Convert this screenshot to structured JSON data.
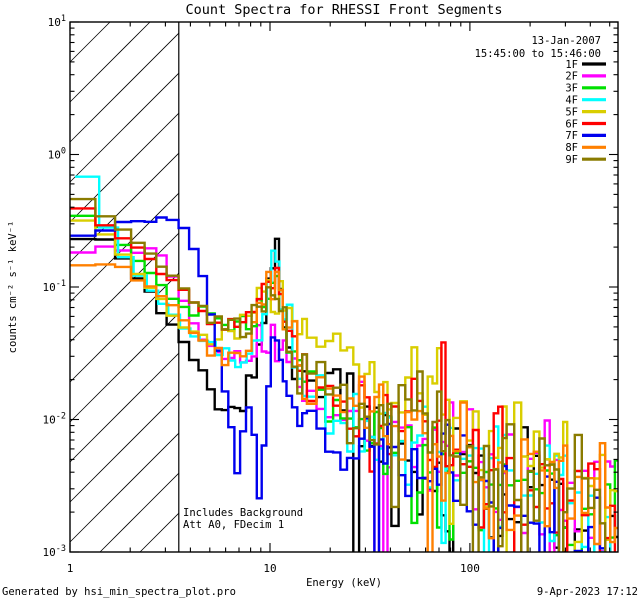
{
  "window": {
    "title": "Count Spectra for RHESSI Front Segments"
  },
  "header": {
    "date": "13-Jan-2007",
    "time_range": "15:45:00 to 15:46:00"
  },
  "annotation": {
    "line1": "Includes Background",
    "line2": "Att A0, FDecim 1"
  },
  "footer": {
    "generated_by": "Generated by hsi_min_spectra_plot.pro",
    "datestamp": "9-Apr-2023 17:12"
  },
  "chart_data": {
    "type": "line",
    "line_style": "histogram-steps",
    "title": "Count Spectra for RHESSI Front Segments",
    "xlabel": "Energy (keV)",
    "ylabel": "counts cm⁻² s⁻¹ keV⁻¹",
    "xscale": "log",
    "yscale": "log",
    "xlim": [
      1,
      550
    ],
    "ylim": [
      0.001,
      10
    ],
    "x_major_ticks": [
      1,
      10,
      100
    ],
    "x_tick_labels": [
      "1",
      "10",
      "100"
    ],
    "y_major_ticks": [
      10,
      1,
      0.1,
      0.01,
      0.001
    ],
    "y_tick_exponents": [
      "1",
      "0",
      "-1",
      "-2",
      "-3"
    ],
    "grid": false,
    "legend_position": "top-right-inside",
    "hatch_region": {
      "x_min": 1,
      "x_max": 3.5,
      "style": "diagonal-lines"
    },
    "bin_width_kev": [
      [
        3,
        0.34
      ],
      [
        7,
        0.45
      ],
      [
        12,
        0.5
      ],
      [
        15,
        0.8
      ],
      [
        40,
        1.8
      ],
      [
        80,
        3.5
      ],
      [
        150,
        7
      ],
      [
        300,
        14
      ],
      [
        550,
        28
      ]
    ],
    "noise_model": {
      "sigma_base_decades": 0.015,
      "sigma_slope_decades": 0.16,
      "sigma_ref_kev": 4,
      "spike_min_kev": 25,
      "spike_prob": 0.06,
      "spike_factor": 0.2,
      "deep_spike_prob": 0.018,
      "deep_spike_factor": 0.05
    },
    "series": [
      {
        "name": "1F",
        "color": "#000000",
        "points": [
          [
            1,
            0.22
          ],
          [
            1.35,
            0.25
          ],
          [
            1.7,
            0.19
          ],
          [
            2,
            0.14
          ],
          [
            2.4,
            0.1
          ],
          [
            3,
            0.06
          ],
          [
            3.5,
            0.042
          ],
          [
            4,
            0.032
          ],
          [
            4.5,
            0.025
          ],
          [
            5,
            0.018
          ],
          [
            5.5,
            0.013
          ],
          [
            6,
            0.011
          ],
          [
            7,
            0.012
          ],
          [
            8,
            0.016
          ],
          [
            9,
            0.035
          ],
          [
            9.8,
            0.08
          ],
          [
            10.8,
            0.19
          ],
          [
            11.5,
            0.08
          ],
          [
            12.5,
            0.035
          ],
          [
            14,
            0.025
          ],
          [
            17,
            0.018
          ],
          [
            22,
            0.013
          ],
          [
            30,
            0.0085
          ],
          [
            45,
            0.006
          ],
          [
            70,
            0.0045
          ],
          [
            100,
            0.0035
          ],
          [
            150,
            0.0027
          ],
          [
            220,
            0.0022
          ],
          [
            320,
            0.0018
          ],
          [
            480,
            0.0015
          ]
        ]
      },
      {
        "name": "2F",
        "color": "#ff00ff",
        "points": [
          [
            1,
            0.19
          ],
          [
            1.5,
            0.19
          ],
          [
            2,
            0.185
          ],
          [
            2.6,
            0.19
          ],
          [
            3,
            0.15
          ],
          [
            3.5,
            0.1
          ],
          [
            4,
            0.06
          ],
          [
            4.5,
            0.042
          ],
          [
            5,
            0.034
          ],
          [
            6,
            0.03
          ],
          [
            7,
            0.029
          ],
          [
            8,
            0.028
          ],
          [
            9,
            0.032
          ],
          [
            10,
            0.04
          ],
          [
            10.8,
            0.046
          ],
          [
            12,
            0.028
          ],
          [
            14,
            0.018
          ],
          [
            17,
            0.013
          ],
          [
            22,
            0.01
          ],
          [
            30,
            0.008
          ],
          [
            45,
            0.0065
          ],
          [
            70,
            0.005
          ],
          [
            100,
            0.004
          ],
          [
            150,
            0.0033
          ],
          [
            220,
            0.0028
          ],
          [
            320,
            0.0022
          ],
          [
            480,
            0.0018
          ]
        ]
      },
      {
        "name": "3F",
        "color": "#00e000",
        "points": [
          [
            1,
            0.39
          ],
          [
            1.3,
            0.32
          ],
          [
            1.7,
            0.24
          ],
          [
            2,
            0.18
          ],
          [
            2.5,
            0.125
          ],
          [
            3,
            0.095
          ],
          [
            3.5,
            0.075
          ],
          [
            4,
            0.065
          ],
          [
            5,
            0.056
          ],
          [
            6,
            0.05
          ],
          [
            7,
            0.05
          ],
          [
            8,
            0.056
          ],
          [
            9,
            0.07
          ],
          [
            10,
            0.1
          ],
          [
            10.8,
            0.125
          ],
          [
            12,
            0.045
          ],
          [
            14,
            0.025
          ],
          [
            17,
            0.017
          ],
          [
            22,
            0.012
          ],
          [
            30,
            0.0095
          ],
          [
            45,
            0.007
          ],
          [
            70,
            0.005
          ],
          [
            100,
            0.004
          ],
          [
            150,
            0.003
          ],
          [
            220,
            0.0024
          ],
          [
            320,
            0.002
          ],
          [
            480,
            0.0016
          ]
        ]
      },
      {
        "name": "4F",
        "color": "#00ffff",
        "points": [
          [
            1.06,
            1.22
          ],
          [
            1.2,
            0.72
          ],
          [
            1.4,
            0.52
          ],
          [
            1.6,
            0.27
          ],
          [
            1.8,
            0.19
          ],
          [
            2,
            0.15
          ],
          [
            2.5,
            0.1
          ],
          [
            3,
            0.072
          ],
          [
            3.5,
            0.055
          ],
          [
            4,
            0.045
          ],
          [
            5,
            0.035
          ],
          [
            6,
            0.03
          ],
          [
            7,
            0.028
          ],
          [
            8,
            0.031
          ],
          [
            9,
            0.05
          ],
          [
            10,
            0.12
          ],
          [
            10.8,
            0.175
          ],
          [
            12,
            0.05
          ],
          [
            14,
            0.024
          ],
          [
            17,
            0.015
          ],
          [
            22,
            0.011
          ],
          [
            30,
            0.008
          ],
          [
            45,
            0.006
          ],
          [
            70,
            0.0045
          ],
          [
            100,
            0.0036
          ],
          [
            150,
            0.0028
          ],
          [
            220,
            0.0023
          ],
          [
            320,
            0.0019
          ],
          [
            480,
            0.0015
          ]
        ]
      },
      {
        "name": "5F",
        "color": "#d9ce00",
        "points": [
          [
            1,
            0.33
          ],
          [
            1.3,
            0.29
          ],
          [
            1.7,
            0.21
          ],
          [
            2,
            0.15
          ],
          [
            2.5,
            0.1
          ],
          [
            3,
            0.075
          ],
          [
            3.5,
            0.056
          ],
          [
            4,
            0.046
          ],
          [
            5,
            0.039
          ],
          [
            6,
            0.043
          ],
          [
            7,
            0.056
          ],
          [
            8,
            0.075
          ],
          [
            9,
            0.09
          ],
          [
            10,
            0.096
          ],
          [
            10.8,
            0.092
          ],
          [
            12,
            0.068
          ],
          [
            14,
            0.053
          ],
          [
            17,
            0.042
          ],
          [
            22,
            0.032
          ],
          [
            30,
            0.023
          ],
          [
            45,
            0.016
          ],
          [
            70,
            0.0115
          ],
          [
            100,
            0.0085
          ],
          [
            150,
            0.006
          ],
          [
            220,
            0.0042
          ],
          [
            320,
            0.003
          ],
          [
            480,
            0.0022
          ]
        ]
      },
      {
        "name": "6F",
        "color": "#ff0000",
        "points": [
          [
            1,
            0.41
          ],
          [
            1.3,
            0.35
          ],
          [
            1.7,
            0.27
          ],
          [
            2,
            0.22
          ],
          [
            2.5,
            0.16
          ],
          [
            3,
            0.12
          ],
          [
            3.5,
            0.095
          ],
          [
            4,
            0.08
          ],
          [
            5,
            0.061
          ],
          [
            6,
            0.051
          ],
          [
            7,
            0.051
          ],
          [
            8,
            0.06
          ],
          [
            9,
            0.08
          ],
          [
            10,
            0.11
          ],
          [
            10.8,
            0.125
          ],
          [
            12,
            0.048
          ],
          [
            14,
            0.028
          ],
          [
            17,
            0.019
          ],
          [
            22,
            0.014
          ],
          [
            30,
            0.011
          ],
          [
            45,
            0.0085
          ],
          [
            70,
            0.0065
          ],
          [
            100,
            0.005
          ],
          [
            150,
            0.004
          ],
          [
            220,
            0.0033
          ],
          [
            320,
            0.0027
          ],
          [
            480,
            0.0022
          ]
        ]
      },
      {
        "name": "7F",
        "color": "#0000ee",
        "points": [
          [
            1,
            0.23
          ],
          [
            1.3,
            0.25
          ],
          [
            1.7,
            0.28
          ],
          [
            2,
            0.3
          ],
          [
            2.4,
            0.32
          ],
          [
            2.9,
            0.33
          ],
          [
            3.4,
            0.32
          ],
          [
            3.8,
            0.27
          ],
          [
            4.2,
            0.19
          ],
          [
            4.6,
            0.12
          ],
          [
            5,
            0.07
          ],
          [
            5.5,
            0.035
          ],
          [
            6,
            0.016
          ],
          [
            6.5,
            0.007
          ],
          [
            7,
            0.0035
          ],
          [
            7.5,
            0.009
          ],
          [
            8,
            0.013
          ],
          [
            8.5,
            0.005
          ],
          [
            9,
            0.0024
          ],
          [
            9.5,
            0.012
          ],
          [
            10,
            0.03
          ],
          [
            10.8,
            0.047
          ],
          [
            12,
            0.02
          ],
          [
            14,
            0.011
          ],
          [
            17,
            0.008
          ],
          [
            22,
            0.0065
          ],
          [
            30,
            0.0055
          ],
          [
            45,
            0.0045
          ],
          [
            70,
            0.0036
          ],
          [
            100,
            0.003
          ],
          [
            150,
            0.0025
          ],
          [
            220,
            0.0021
          ],
          [
            320,
            0.0017
          ],
          [
            480,
            0.0014
          ]
        ]
      },
      {
        "name": "8F",
        "color": "#ff8000",
        "points": [
          [
            1,
            0.145
          ],
          [
            1.5,
            0.15
          ],
          [
            2,
            0.13
          ],
          [
            2.5,
            0.105
          ],
          [
            3,
            0.082
          ],
          [
            3.5,
            0.062
          ],
          [
            4,
            0.05
          ],
          [
            5,
            0.036
          ],
          [
            6,
            0.029
          ],
          [
            7,
            0.031
          ],
          [
            8,
            0.042
          ],
          [
            9,
            0.062
          ],
          [
            10,
            0.1
          ],
          [
            10.8,
            0.12
          ],
          [
            12,
            0.05
          ],
          [
            14,
            0.027
          ],
          [
            17,
            0.018
          ],
          [
            22,
            0.0135
          ],
          [
            30,
            0.0105
          ],
          [
            45,
            0.008
          ],
          [
            70,
            0.0062
          ],
          [
            100,
            0.005
          ],
          [
            150,
            0.004
          ],
          [
            220,
            0.0033
          ],
          [
            320,
            0.0028
          ],
          [
            480,
            0.0023
          ]
        ]
      },
      {
        "name": "9F",
        "color": "#8a7b00",
        "points": [
          [
            1,
            0.5
          ],
          [
            1.3,
            0.42
          ],
          [
            1.7,
            0.31
          ],
          [
            2,
            0.25
          ],
          [
            2.5,
            0.18
          ],
          [
            3,
            0.135
          ],
          [
            3.5,
            0.105
          ],
          [
            4,
            0.085
          ],
          [
            5,
            0.062
          ],
          [
            6,
            0.051
          ],
          [
            7,
            0.047
          ],
          [
            8,
            0.052
          ],
          [
            9,
            0.062
          ],
          [
            10,
            0.082
          ],
          [
            10.8,
            0.1
          ],
          [
            12,
            0.043
          ],
          [
            14,
            0.026
          ],
          [
            17,
            0.017
          ],
          [
            22,
            0.013
          ],
          [
            30,
            0.0105
          ],
          [
            45,
            0.008
          ],
          [
            70,
            0.006
          ],
          [
            100,
            0.0047
          ],
          [
            150,
            0.0038
          ],
          [
            220,
            0.0031
          ],
          [
            320,
            0.0026
          ],
          [
            480,
            0.0021
          ]
        ]
      }
    ]
  }
}
